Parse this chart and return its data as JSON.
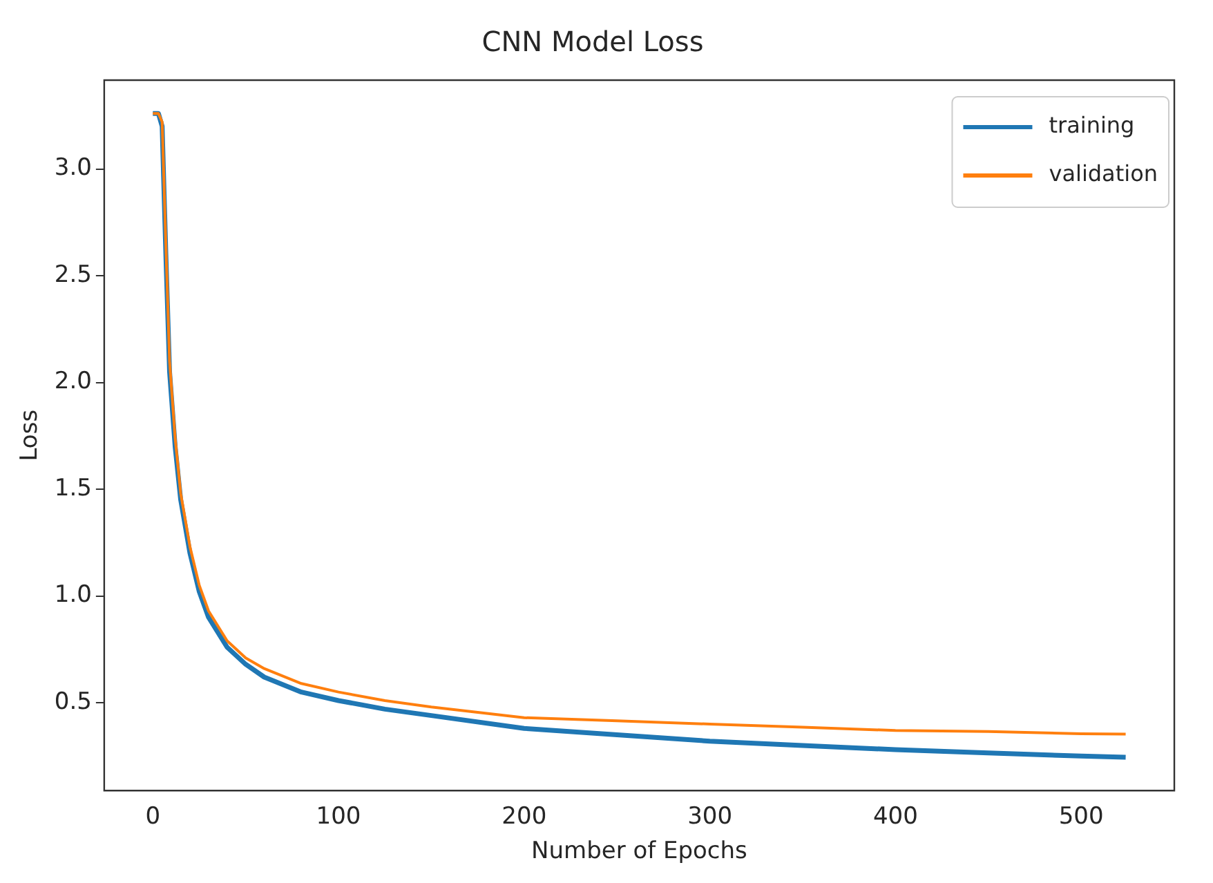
{
  "chart_data": {
    "type": "line",
    "title": "CNN Model Loss",
    "xlabel": "Number of Epochs",
    "ylabel": "Loss",
    "x": [
      0,
      3,
      5,
      7,
      9,
      12,
      15,
      20,
      25,
      30,
      40,
      50,
      60,
      80,
      100,
      125,
      150,
      200,
      250,
      300,
      350,
      400,
      450,
      500,
      524
    ],
    "series": [
      {
        "name": "training",
        "color": "#1f77b4",
        "values": [
          3.26,
          3.26,
          3.2,
          2.6,
          2.05,
          1.7,
          1.45,
          1.2,
          1.02,
          0.9,
          0.76,
          0.68,
          0.62,
          0.55,
          0.51,
          0.47,
          0.44,
          0.38,
          0.35,
          0.32,
          0.3,
          0.28,
          0.265,
          0.25,
          0.245
        ]
      },
      {
        "name": "validation",
        "color": "#ff7f0e",
        "values": [
          3.26,
          3.26,
          3.22,
          2.65,
          2.1,
          1.74,
          1.48,
          1.23,
          1.05,
          0.93,
          0.79,
          0.71,
          0.66,
          0.59,
          0.55,
          0.51,
          0.48,
          0.43,
          0.415,
          0.4,
          0.385,
          0.37,
          0.365,
          0.355,
          0.353
        ]
      }
    ],
    "xlim": [
      -26.2,
      550.2
    ],
    "xticks": [
      0,
      100,
      200,
      300,
      400,
      500
    ],
    "ylim": [
      0.088,
      3.416
    ],
    "yticks": [
      0.5,
      {
        "value": 1,
        "label": "1.0"
      },
      1.5,
      {
        "value": 2,
        "label": "2.0"
      },
      2.5,
      {
        "value": 3,
        "label": "3.0"
      }
    ],
    "grid": false,
    "legend": "top right",
    "marker": "none",
    "line_style": "solid"
  }
}
